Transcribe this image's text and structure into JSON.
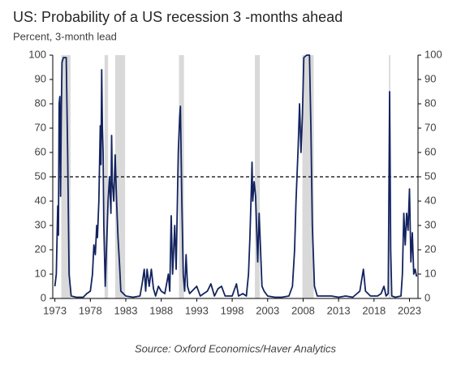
{
  "chart_data": {
    "type": "line",
    "title": "US: Probability of a US recession 3 -months ahead",
    "subtitle": "Percent, 3-month lead",
    "source": "Source: Oxford Economics/Haver Analytics",
    "xlim": [
      1972.7,
      2024.2
    ],
    "xticks": [
      1973,
      1978,
      1983,
      1988,
      1993,
      1998,
      2003,
      2008,
      2013,
      2018,
      2023
    ],
    "ylim": [
      0,
      100
    ],
    "yticks": [
      0,
      10,
      20,
      30,
      40,
      50,
      60,
      70,
      80,
      90,
      100
    ],
    "y2lim": [
      0,
      100
    ],
    "y2ticks": [
      0,
      10,
      20,
      30,
      40,
      50,
      60,
      70,
      80,
      90,
      100
    ],
    "grid": false,
    "reference_line": 50,
    "shade_color": "#d9d9d9",
    "shaded_periods": [
      [
        1973.9,
        1975.2
      ],
      [
        1980.0,
        1980.5
      ],
      [
        1981.5,
        1982.9
      ],
      [
        1990.5,
        1991.2
      ],
      [
        2001.2,
        2001.9
      ],
      [
        2007.9,
        2009.5
      ],
      [
        2020.1,
        2020.3
      ]
    ],
    "series": [
      {
        "color": "#13235f",
        "x": [
          1973.0,
          1973.2,
          1973.4,
          1973.5,
          1973.6,
          1973.7,
          1973.8,
          1973.9,
          1974.0,
          1974.2,
          1974.6,
          1974.8,
          1975.0,
          1975.3,
          1976,
          1977,
          1977.5,
          1978.0,
          1978.3,
          1978.5,
          1978.7,
          1978.9,
          1979.0,
          1979.2,
          1979.4,
          1979.5,
          1979.6,
          1979.7,
          1979.8,
          1979.9,
          1980.1,
          1980.5,
          1980.7,
          1980.9,
          1981.0,
          1981.1,
          1981.3,
          1981.5,
          1981.7,
          1981.9,
          1982.1,
          1982.3,
          1983,
          1984,
          1985,
          1985.3,
          1985.6,
          1985.8,
          1986.0,
          1986.3,
          1986.6,
          1986.9,
          1987.2,
          1987.6,
          1988.0,
          1988.5,
          1989.0,
          1989.2,
          1989.4,
          1989.6,
          1989.9,
          1990.1,
          1990.4,
          1990.6,
          1990.7,
          1990.9,
          1991.1,
          1991.3,
          1991.5,
          1991.7,
          1992,
          1993,
          1993.5,
          1994.5,
          1995,
          1995.5,
          1996,
          1996.5,
          1997,
          1998,
          1998.6,
          1998.9,
          1999.5,
          2000.0,
          2000.3,
          2000.5,
          2000.7,
          2000.8,
          2000.9,
          2001.1,
          2001.3,
          2001.6,
          2001.8,
          2002.0,
          2002.2,
          2002.5,
          2003,
          2004,
          2005,
          2006,
          2006.5,
          2006.8,
          2007.0,
          2007.3,
          2007.5,
          2007.7,
          2007.9,
          2008.1,
          2008.5,
          2008.9,
          2009.1,
          2009.3,
          2009.6,
          2010,
          2011,
          2012,
          2013,
          2014,
          2015,
          2016,
          2016.5,
          2016.8,
          2017.5,
          2018.5,
          2019.0,
          2019.4,
          2019.7,
          2020.0,
          2020.2,
          2020.35,
          2020.5,
          2021,
          2021.8,
          2022.0,
          2022.2,
          2022.4,
          2022.6,
          2022.8,
          2023.0,
          2023.2,
          2023.4,
          2023.6,
          2023.8,
          2024.0
        ],
        "values": [
          5,
          10,
          38,
          26,
          80,
          83,
          42,
          75,
          97,
          99,
          99,
          60,
          10,
          1,
          0.5,
          0.5,
          2,
          3,
          10,
          22,
          18,
          30,
          25,
          40,
          71,
          55,
          94,
          70,
          60,
          30,
          5,
          40,
          50,
          35,
          67,
          48,
          40,
          59,
          40,
          25,
          15,
          3,
          1,
          0.5,
          1,
          6,
          12,
          3,
          12,
          5,
          12,
          4,
          1,
          5,
          3,
          2,
          10,
          3,
          34,
          10,
          30,
          12,
          60,
          75,
          79,
          40,
          10,
          3,
          18,
          5,
          2,
          5,
          1,
          3,
          6,
          1,
          4,
          5,
          1,
          1,
          6,
          1,
          2,
          1,
          10,
          25,
          45,
          56,
          40,
          48,
          42,
          15,
          35,
          20,
          5,
          3,
          1,
          0.5,
          0.5,
          1,
          5,
          20,
          40,
          62,
          80,
          60,
          75,
          99,
          100,
          100,
          70,
          30,
          5,
          1,
          1,
          1,
          0.5,
          1,
          0.5,
          3,
          12,
          3,
          1,
          1,
          2,
          5,
          1,
          2,
          85,
          20,
          1,
          0.5,
          1,
          10,
          35,
          22,
          35,
          28,
          45,
          15,
          27,
          10,
          12,
          9
        ]
      }
    ]
  }
}
